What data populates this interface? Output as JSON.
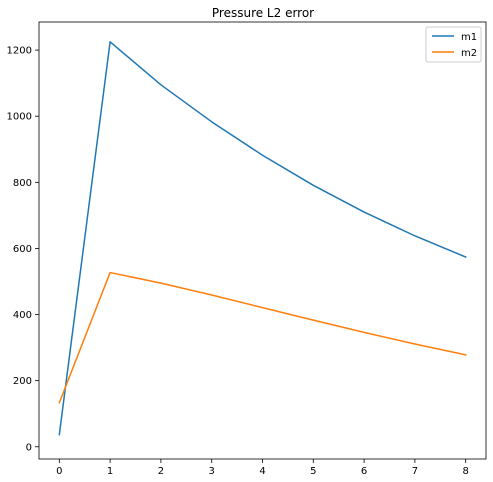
{
  "chart_data": {
    "type": "line",
    "title": "Pressure L2 error",
    "xlabel": "",
    "ylabel": "",
    "x": [
      0,
      1,
      2,
      3,
      4,
      5,
      6,
      7,
      8
    ],
    "xlim": [
      -0.4,
      8.4
    ],
    "ylim": [
      -37,
      1285
    ],
    "xticks": [
      0,
      1,
      2,
      3,
      4,
      5,
      6,
      7,
      8
    ],
    "yticks": [
      0,
      200,
      400,
      600,
      800,
      1000,
      1200
    ],
    "grid": false,
    "legend_position": "top-right",
    "series": [
      {
        "name": "m1",
        "color": "#1f77b4",
        "values": [
          37,
          1225,
          1095,
          983,
          882,
          791,
          710,
          638,
          574
        ]
      },
      {
        "name": "m2",
        "color": "#ff7f0e",
        "values": [
          133,
          527,
          495,
          459,
          421,
          383,
          346,
          311,
          278
        ]
      }
    ]
  }
}
